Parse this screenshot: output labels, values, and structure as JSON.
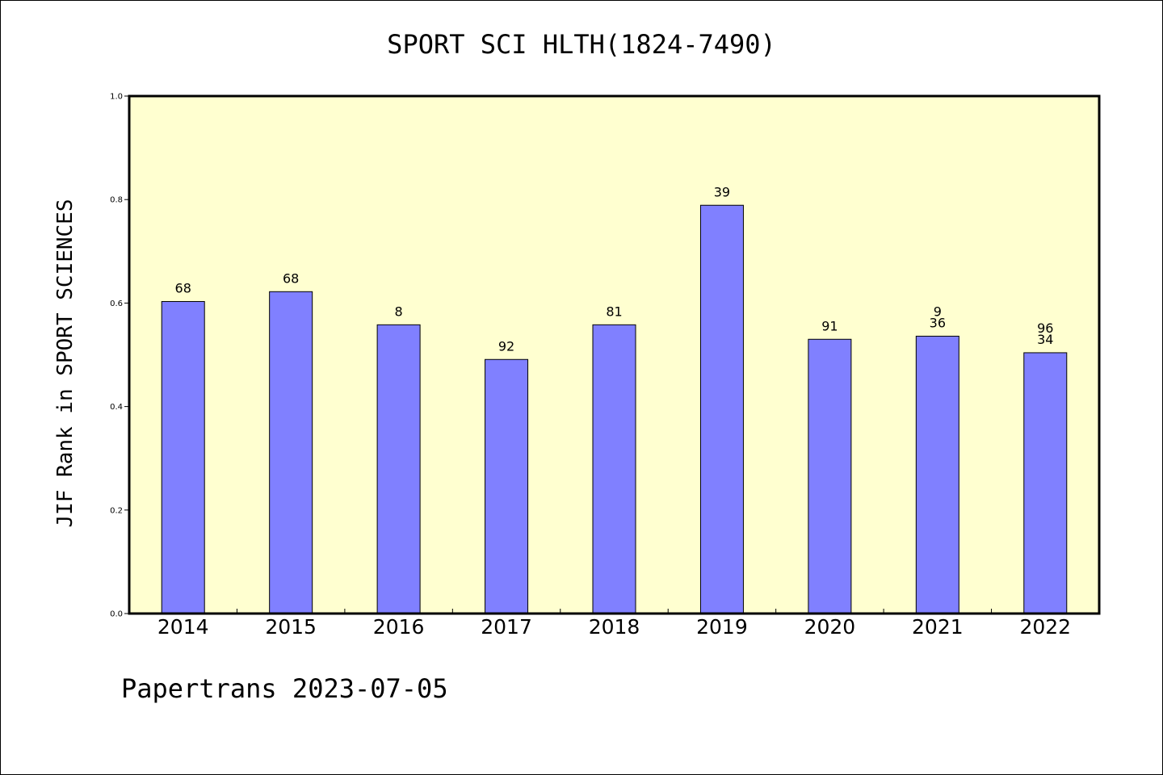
{
  "chart_data": {
    "type": "bar",
    "title": "SPORT SCI HLTH(1824-7490)",
    "xlabel": "",
    "ylabel": "JIF Rank in SPORT SCIENCES",
    "ylim": [
      0,
      1.0
    ],
    "yticks": [
      0.0,
      0.2,
      0.4,
      0.6,
      0.8,
      1.0
    ],
    "ytick_labels": [
      "0.0",
      "0.2",
      "0.4",
      "0.6",
      "0.8",
      "1.0"
    ],
    "grid": false,
    "categories": [
      "2014",
      "2015",
      "2016",
      "2017",
      "2018",
      "2019",
      "2020",
      "2021",
      "2022"
    ],
    "values": [
      0.603,
      0.622,
      0.558,
      0.491,
      0.558,
      0.789,
      0.53,
      0.536,
      0.504
    ],
    "bar_labels": [
      [
        "68"
      ],
      [
        "68"
      ],
      [
        "8"
      ],
      [
        "92"
      ],
      [
        "81"
      ],
      [
        "39"
      ],
      [
        "91"
      ],
      [
        "9",
        "36"
      ],
      [
        "96",
        "34"
      ]
    ]
  },
  "colors": {
    "plot_background": "#ffffd0",
    "bar_fill": "#8080ff",
    "bar_edge": "#000000",
    "axis": "#000000"
  },
  "footer": {
    "text": "Papertrans 2023-07-05"
  }
}
